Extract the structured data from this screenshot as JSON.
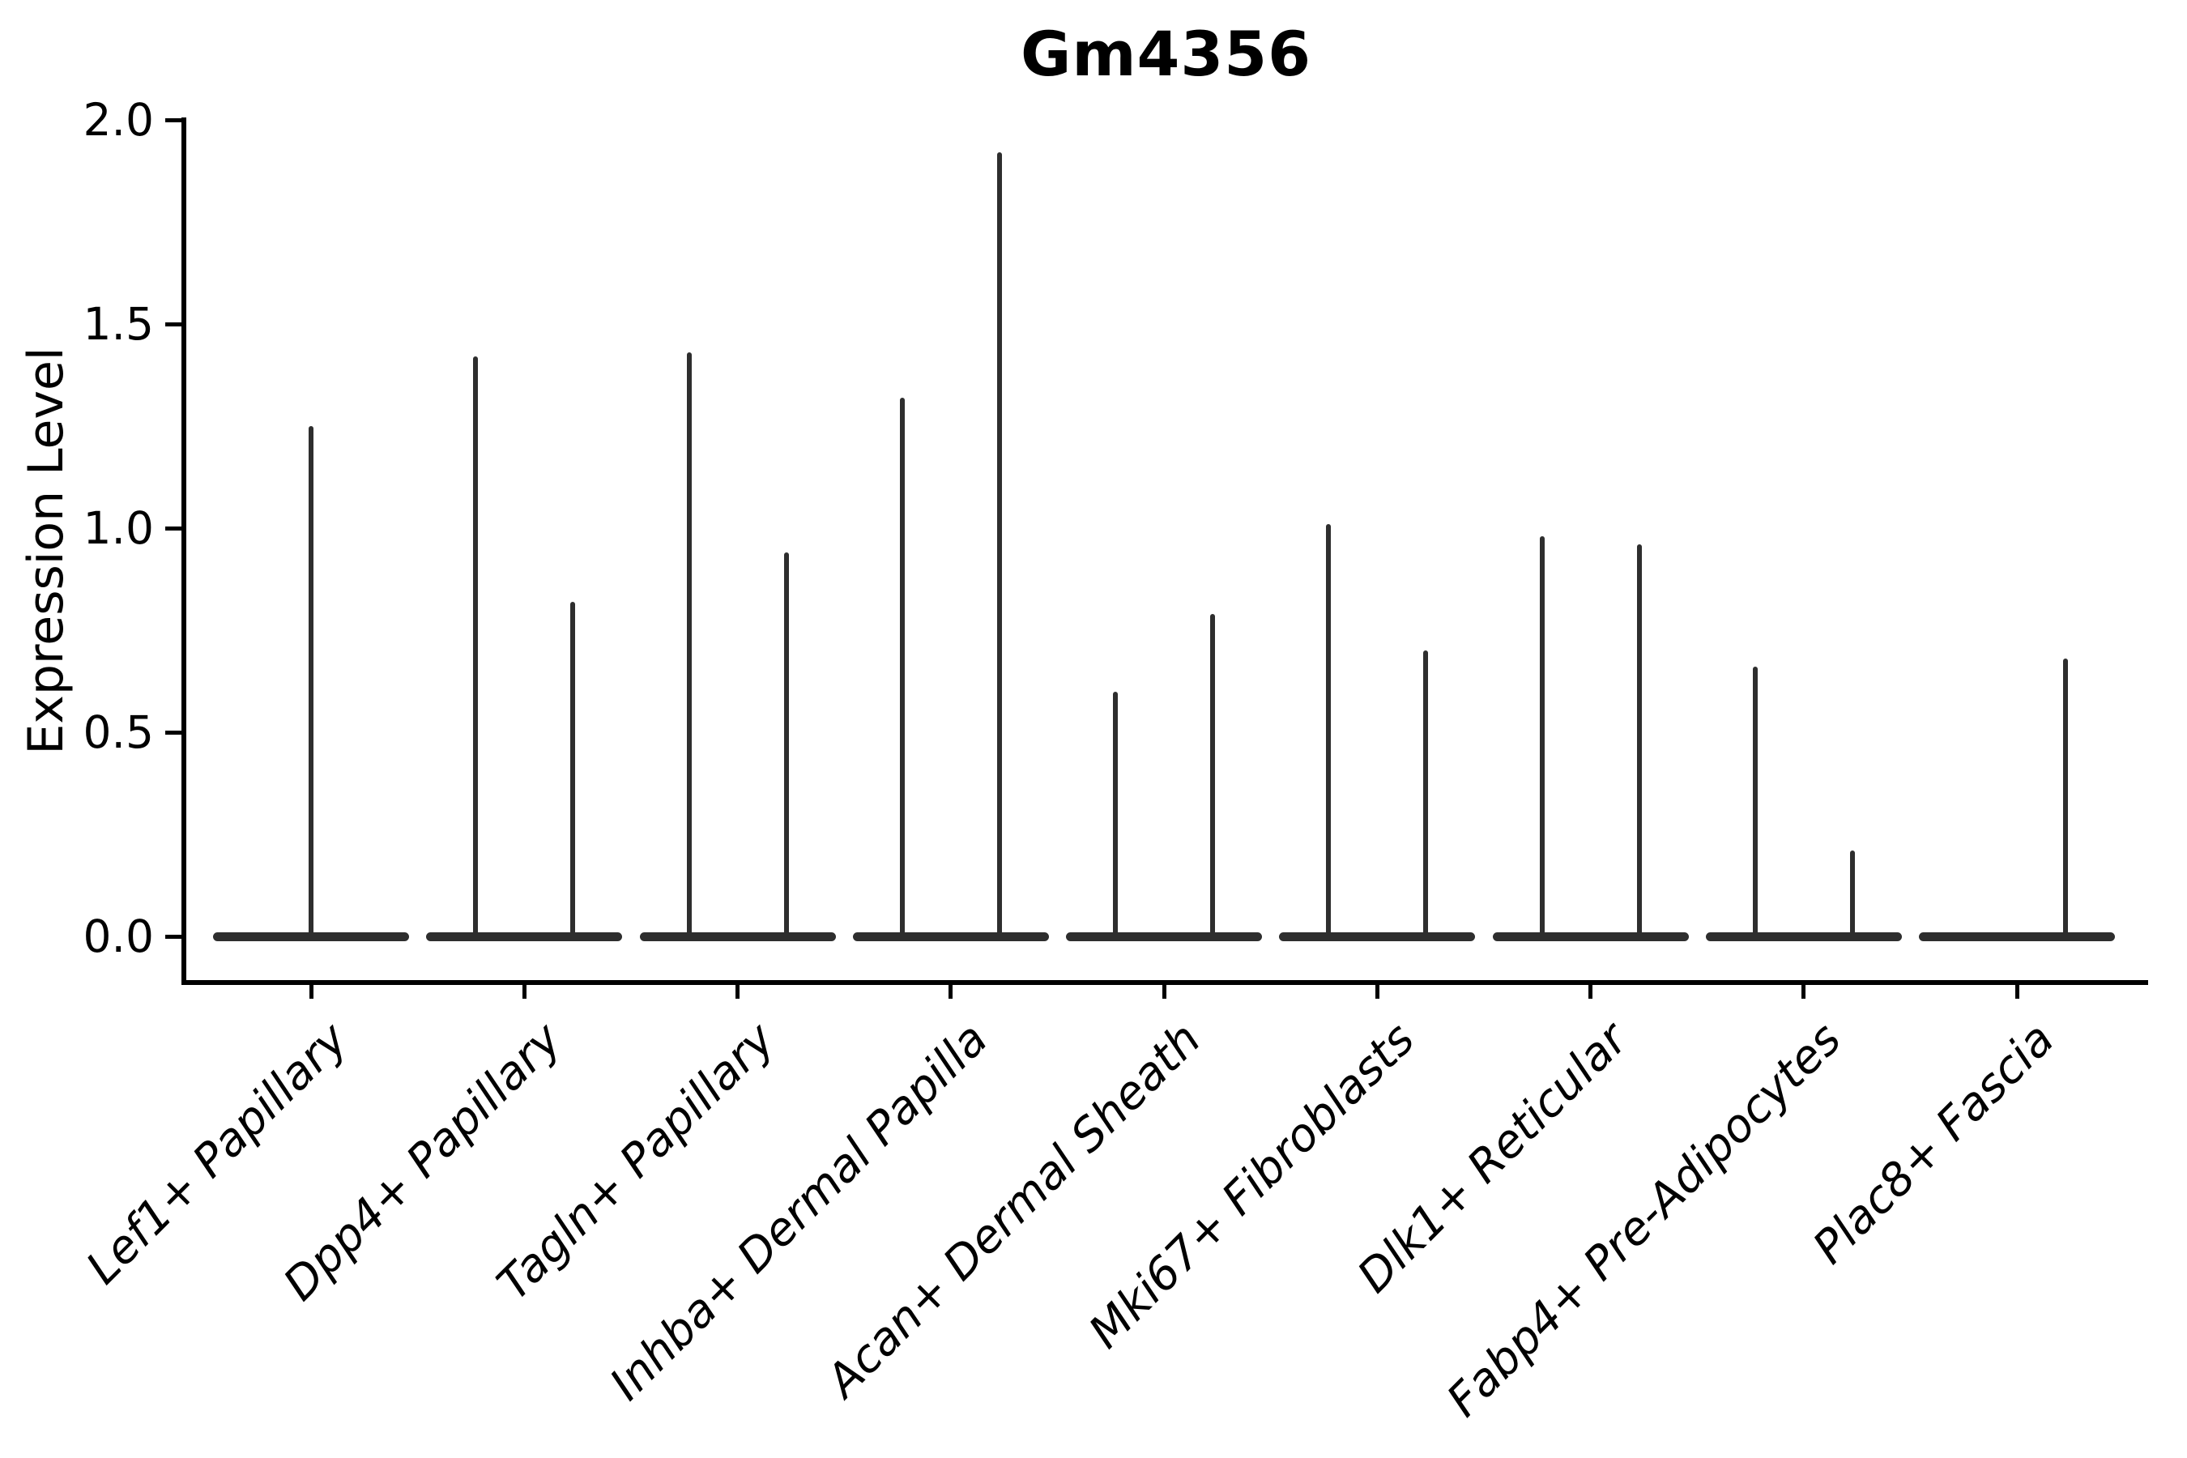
{
  "page": {
    "background": "#ffffff"
  },
  "chart_data": {
    "type": "violin",
    "title": "Gm4356",
    "ylabel": "Expression Level",
    "xlabel": "",
    "ylim": [
      -0.11,
      2.0
    ],
    "yticks": [
      0.0,
      0.5,
      1.0,
      1.5,
      2.0
    ],
    "ytick_labels": [
      "0.0",
      "0.5",
      "1.0",
      "1.5",
      "2.0"
    ],
    "grid": false,
    "legend": false,
    "categories": [
      "Lef1+ Papillary",
      "Dpp4+ Papillary",
      "Tagln+ Papillary",
      "Inhba+ Dermal Papilla",
      "Acan+ Dermal Sheath",
      "Mki67+ Fibroblasts",
      "Dlk1+ Reticular",
      "Fabp4+ Pre-Adipocytes",
      "Plac8+ Fascia"
    ],
    "violins": [
      {
        "category": "Lef1+ Papillary",
        "spikes": [
          {
            "position": "center",
            "max_expression": 1.25
          }
        ]
      },
      {
        "category": "Dpp4+ Papillary",
        "spikes": [
          {
            "position": "left",
            "max_expression": 1.42
          },
          {
            "position": "right",
            "max_expression": 0.82
          }
        ]
      },
      {
        "category": "Tagln+ Papillary",
        "spikes": [
          {
            "position": "left",
            "max_expression": 1.43
          },
          {
            "position": "right",
            "max_expression": 0.94
          }
        ]
      },
      {
        "category": "Inhba+ Dermal Papilla",
        "spikes": [
          {
            "position": "left",
            "max_expression": 1.32
          },
          {
            "position": "right",
            "max_expression": 1.92
          }
        ]
      },
      {
        "category": "Acan+ Dermal Sheath",
        "spikes": [
          {
            "position": "left",
            "max_expression": 0.6
          },
          {
            "position": "right",
            "max_expression": 0.79
          }
        ]
      },
      {
        "category": "Mki67+ Fibroblasts",
        "spikes": [
          {
            "position": "left",
            "max_expression": 1.01
          },
          {
            "position": "right",
            "max_expression": 0.7
          }
        ]
      },
      {
        "category": "Dlk1+ Reticular",
        "spikes": [
          {
            "position": "left",
            "max_expression": 0.98
          },
          {
            "position": "right",
            "max_expression": 0.96
          }
        ]
      },
      {
        "category": "Fabp4+ Pre-Adipocytes",
        "spikes": [
          {
            "position": "left",
            "max_expression": 0.66
          },
          {
            "position": "right",
            "max_expression": 0.21
          }
        ]
      },
      {
        "category": "Plac8+ Fascia",
        "spikes": [
          {
            "position": "right",
            "max_expression": 0.68
          }
        ]
      }
    ],
    "baseline_note": "Each violin is almost entirely flat at expression level 0 (wide flat base) with a thin vertical tail reaching up to max_expression",
    "style": {
      "violin_color": "#2e2e2e",
      "axis_color": "#000000",
      "background": "#ffffff",
      "x_tick_label_style": "italic",
      "x_tick_rotation_deg": 45,
      "title_weight": "bold"
    }
  }
}
